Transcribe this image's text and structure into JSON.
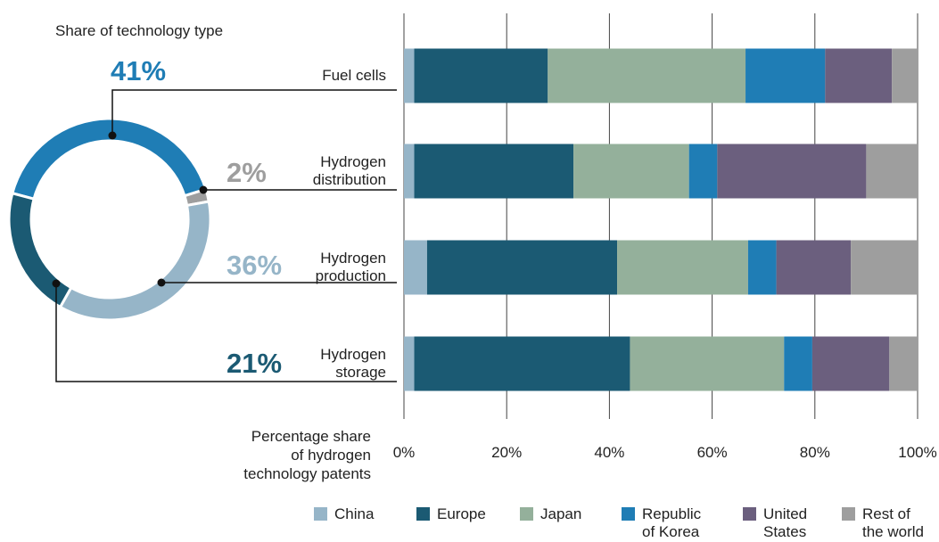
{
  "chart_data": [
    {
      "type": "donut",
      "title": "Share of technology type",
      "values": [
        41,
        2,
        36,
        21
      ],
      "value_labels": [
        "41%",
        "2%",
        "36%",
        "21%"
      ],
      "colors": [
        "#1f7db5",
        "#9e9e9e",
        "#96b5c8",
        "#1b5a73"
      ]
    },
    {
      "type": "stacked_barh",
      "categories": [
        "Fuel cells",
        "Hydrogen\ndistribution",
        "Hydrogen\nproduction",
        "Hydrogen\nstorage"
      ],
      "series": [
        {
          "name": "China",
          "color": "#96b5c8",
          "values": [
            2,
            2,
            4.5,
            2
          ]
        },
        {
          "name": "Europe",
          "color": "#1b5a73",
          "values": [
            26,
            31,
            37,
            42
          ]
        },
        {
          "name": "Japan",
          "color": "#94b09b",
          "values": [
            38.5,
            22.5,
            25.5,
            30
          ]
        },
        {
          "name": "Republic\nof Korea",
          "color": "#1f7db5",
          "values": [
            15.5,
            5.5,
            5.5,
            5.5
          ]
        },
        {
          "name": "United\nStates",
          "color": "#6b5f7e",
          "values": [
            13,
            29,
            14.5,
            15
          ]
        },
        {
          "name": "Rest of\nthe world",
          "color": "#9e9e9e",
          "values": [
            5,
            10,
            13,
            5.5
          ]
        }
      ],
      "xlim": [
        0,
        100
      ],
      "xticks": [
        {
          "value": 0,
          "label": "0%"
        },
        {
          "value": 20,
          "label": "20%"
        },
        {
          "value": 40,
          "label": "40%"
        },
        {
          "value": 60,
          "label": "60%"
        },
        {
          "value": 80,
          "label": "80%"
        },
        {
          "value": 100,
          "label": "100%"
        }
      ],
      "xlabel": "Percentage share\nof hydrogen\ntechnology patents",
      "grid": true,
      "legend": "bottom"
    }
  ]
}
